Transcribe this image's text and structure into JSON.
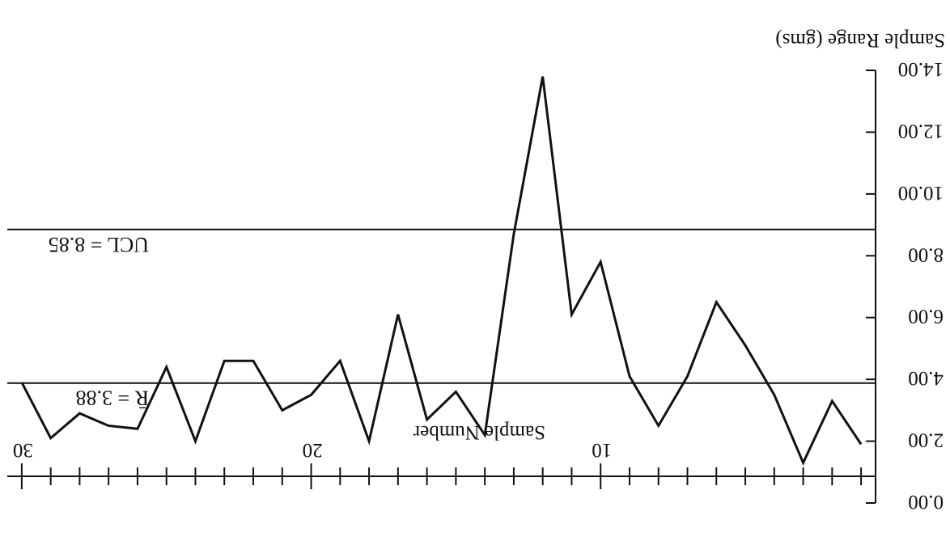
{
  "chart_data": {
    "type": "line",
    "orientation_note_rotated": true,
    "xlabel": "Sample Number",
    "ylabel": "Sample Range (gms)",
    "x_ticks": [
      "10",
      "20",
      "30"
    ],
    "y_ticks": [
      "0.00",
      "2.00",
      "4.00",
      "6.00",
      "8.00",
      "10.00",
      "12.00",
      "14.00"
    ],
    "xlim": [
      0,
      30
    ],
    "ylim": [
      0,
      14
    ],
    "series": [
      {
        "x": [
          1,
          2,
          3,
          4,
          5,
          6,
          7,
          8,
          9,
          10,
          11,
          12,
          13,
          14,
          15,
          16,
          17,
          18,
          19,
          20,
          21,
          22,
          23,
          24,
          25,
          26,
          27,
          28,
          29,
          30
        ],
        "values": [
          1.9,
          3.3,
          1.3,
          3.5,
          5.1,
          6.5,
          4.1,
          2.5,
          4.1,
          7.8,
          6.1,
          13.8,
          8.7,
          2.2,
          3.6,
          2.7,
          6.1,
          2.0,
          4.6,
          3.5,
          3.0,
          4.6,
          4.6,
          2.0,
          4.4,
          2.4,
          2.5,
          2.9,
          2.1,
          3.9
        ]
      }
    ],
    "reference_lines": [
      {
        "label": "R̄ = 3.88",
        "value": 3.88
      },
      {
        "label": "UCL = 8.85",
        "value": 8.85
      }
    ],
    "grid": false
  }
}
